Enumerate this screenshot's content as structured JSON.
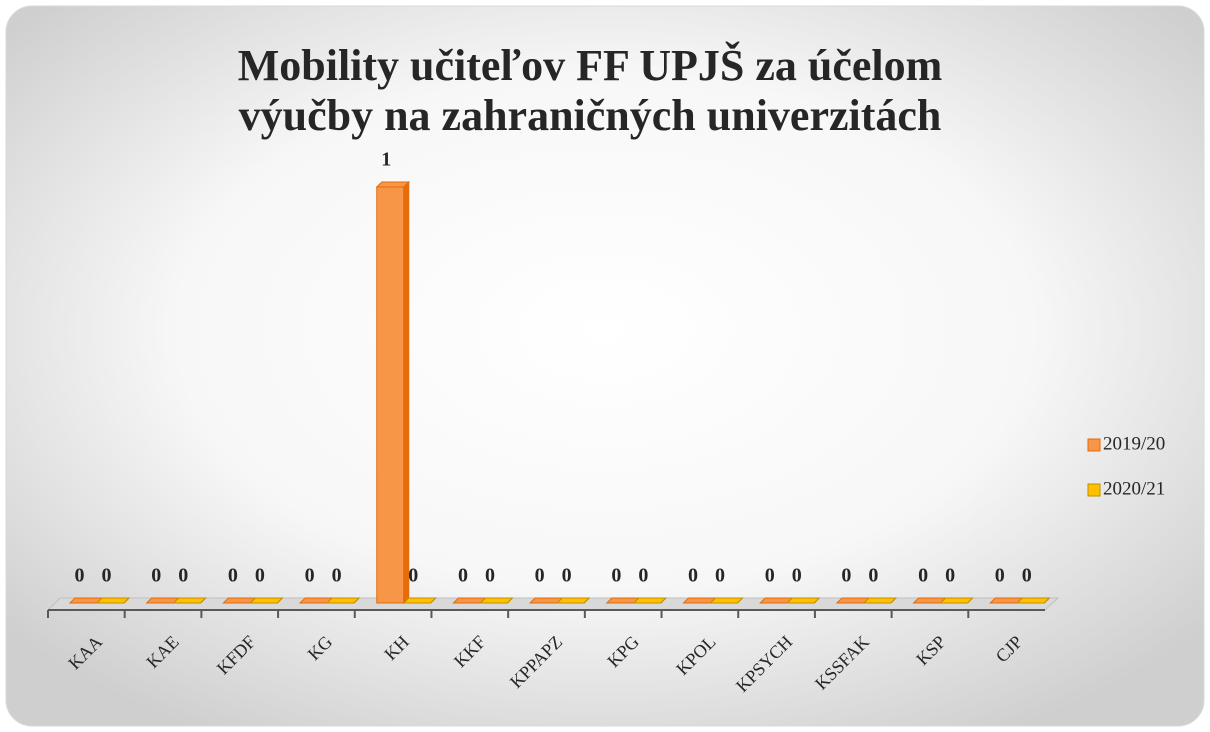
{
  "chart_data": {
    "type": "bar3d",
    "title": "Mobility učiteľov FF UPJŠ za účelom výučby na zahraničných univerzitách",
    "categories": [
      "KAA",
      "KAE",
      "KFDF",
      "KG",
      "KH",
      "KKF",
      "KPPAPZ",
      "KPG",
      "KPOL",
      "KPSYCH",
      "KSSFAK",
      "KSP",
      "CJP"
    ],
    "series": [
      {
        "name": "2019/20",
        "color": "#f79646",
        "values": [
          0,
          0,
          0,
          0,
          1,
          0,
          0,
          0,
          0,
          0,
          0,
          0,
          0
        ]
      },
      {
        "name": "2020/21",
        "color": "#ffc000",
        "values": [
          0,
          0,
          0,
          0,
          0,
          0,
          0,
          0,
          0,
          0,
          0,
          0,
          0
        ]
      }
    ],
    "legend": "right"
  }
}
